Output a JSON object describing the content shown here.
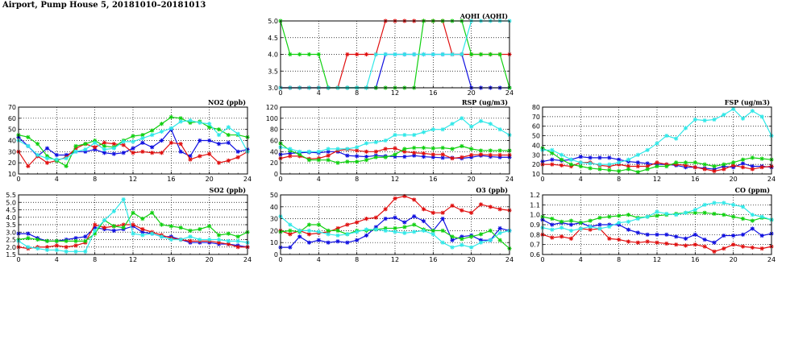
{
  "title": "Airport, Pump House 5, 20181010–20181013",
  "colors": {
    "blue": "#1010e0",
    "red": "#e01010",
    "green": "#10d010",
    "cyan": "#30e8e8"
  },
  "chart_data": [
    {
      "id": "aqhi",
      "type": "line",
      "title": "AQHI (AQHI)",
      "x": [
        0,
        1,
        2,
        3,
        4,
        5,
        6,
        7,
        8,
        9,
        10,
        11,
        12,
        13,
        14,
        15,
        16,
        17,
        18,
        19,
        20,
        21,
        22,
        23,
        24
      ],
      "xlim": [
        0,
        24
      ],
      "xticks": [
        "0",
        "4",
        "8",
        "12",
        "16",
        "20",
        "24"
      ],
      "ylim": [
        3,
        5
      ],
      "yticks": [
        "3.0",
        "3.5",
        "4.0",
        "4.5",
        "5.0"
      ],
      "grid": true,
      "series": [
        {
          "color": "blue",
          "values": [
            3,
            3,
            3,
            3,
            3,
            3,
            3,
            3,
            3,
            3,
            3,
            4,
            4,
            4,
            4,
            4,
            4,
            4,
            4,
            4,
            3,
            3,
            3,
            3,
            3
          ]
        },
        {
          "color": "red",
          "values": [
            3,
            3,
            3,
            3,
            3,
            3,
            3,
            4,
            4,
            4,
            4,
            5,
            5,
            5,
            5,
            5,
            5,
            5,
            4,
            4,
            4,
            4,
            4,
            4,
            4
          ]
        },
        {
          "color": "green",
          "values": [
            5,
            4,
            4,
            4,
            4,
            3,
            3,
            3,
            3,
            3,
            3,
            3,
            3,
            3,
            3,
            5,
            5,
            5,
            5,
            5,
            4,
            4,
            4,
            4,
            3
          ]
        },
        {
          "color": "cyan",
          "values": [
            3,
            3,
            3,
            3,
            3,
            3,
            3,
            3,
            3,
            3,
            4,
            4,
            4,
            4,
            4,
            4,
            4,
            4,
            4,
            4,
            5,
            5,
            5,
            5,
            5
          ]
        }
      ]
    },
    {
      "id": "no2",
      "type": "line",
      "title": "NO2 (ppb)",
      "x": [
        0,
        1,
        2,
        3,
        4,
        5,
        6,
        7,
        8,
        9,
        10,
        11,
        12,
        13,
        14,
        15,
        16,
        17,
        18,
        19,
        20,
        21,
        22,
        23,
        24
      ],
      "xlim": [
        0,
        24
      ],
      "xticks": [
        "0",
        "4",
        "8",
        "12",
        "16",
        "20",
        "24"
      ],
      "ylim": [
        10,
        70
      ],
      "yticks": [
        "10",
        "20",
        "30",
        "40",
        "50",
        "60",
        "70"
      ],
      "grid": true,
      "series": [
        {
          "color": "blue",
          "values": [
            43,
            35,
            26,
            33,
            27,
            27,
            30,
            30,
            32,
            29,
            28,
            29,
            33,
            38,
            34,
            40,
            50,
            30,
            26,
            40,
            40,
            37,
            38,
            30,
            32
          ]
        },
        {
          "color": "red",
          "values": [
            30,
            17,
            26,
            20,
            22,
            25,
            33,
            37,
            34,
            38,
            37,
            36,
            29,
            30,
            29,
            29,
            38,
            37,
            23,
            26,
            28,
            20,
            22,
            25,
            30
          ]
        },
        {
          "color": "green",
          "values": [
            45,
            43,
            37,
            26,
            22,
            17,
            35,
            37,
            40,
            35,
            34,
            40,
            44,
            45,
            49,
            55,
            61,
            60,
            56,
            57,
            52,
            50,
            45,
            45,
            43
          ]
        },
        {
          "color": "cyan",
          "values": [
            40,
            35,
            27,
            24,
            23,
            24,
            30,
            32,
            38,
            32,
            33,
            39,
            39,
            42,
            45,
            48,
            51,
            57,
            58,
            56,
            55,
            45,
            52,
            46,
            30
          ]
        }
      ]
    },
    {
      "id": "rsp",
      "type": "line",
      "title": "RSP (ug/m3)",
      "x": [
        0,
        1,
        2,
        3,
        4,
        5,
        6,
        7,
        8,
        9,
        10,
        11,
        12,
        13,
        14,
        15,
        16,
        17,
        18,
        19,
        20,
        21,
        22,
        23,
        24
      ],
      "xlim": [
        0,
        24
      ],
      "xticks": [
        "0",
        "4",
        "8",
        "12",
        "16",
        "20",
        "24"
      ],
      "ylim": [
        0,
        120
      ],
      "yticks": [
        "0",
        "20",
        "40",
        "60",
        "80",
        "100",
        "120"
      ],
      "grid": true,
      "series": [
        {
          "color": "blue",
          "values": [
            35,
            37,
            38,
            39,
            38,
            40,
            40,
            33,
            32,
            31,
            33,
            32,
            31,
            31,
            33,
            31,
            30,
            29,
            29,
            28,
            30,
            33,
            31,
            30,
            30
          ]
        },
        {
          "color": "red",
          "values": [
            28,
            32,
            32,
            27,
            28,
            33,
            42,
            44,
            42,
            40,
            40,
            45,
            46,
            40,
            38,
            37,
            35,
            35,
            28,
            30,
            34,
            35,
            34,
            34,
            34
          ]
        },
        {
          "color": "green",
          "values": [
            55,
            42,
            35,
            25,
            25,
            25,
            20,
            22,
            22,
            25,
            30,
            30,
            35,
            45,
            47,
            47,
            46,
            47,
            45,
            50,
            45,
            42,
            42,
            42,
            42
          ]
        },
        {
          "color": "cyan",
          "values": [
            48,
            45,
            40,
            40,
            40,
            45,
            45,
            45,
            48,
            55,
            57,
            60,
            70,
            70,
            70,
            75,
            80,
            80,
            90,
            100,
            85,
            95,
            90,
            80,
            70
          ]
        }
      ]
    },
    {
      "id": "fsp",
      "type": "line",
      "title": "FSP (ug/m3)",
      "x": [
        0,
        1,
        2,
        3,
        4,
        5,
        6,
        7,
        8,
        9,
        10,
        11,
        12,
        13,
        14,
        15,
        16,
        17,
        18,
        19,
        20,
        21,
        22,
        23,
        24
      ],
      "xlim": [
        0,
        24
      ],
      "xticks": [
        "0",
        "4",
        "8",
        "12",
        "16",
        "20",
        "24"
      ],
      "ylim": [
        10,
        80
      ],
      "yticks": [
        "10",
        "20",
        "30",
        "40",
        "50",
        "60",
        "70",
        "80"
      ],
      "grid": true,
      "series": [
        {
          "color": "blue",
          "values": [
            23,
            25,
            24,
            25,
            28,
            27,
            27,
            27,
            25,
            23,
            22,
            21,
            20,
            20,
            19,
            17,
            17,
            16,
            15,
            18,
            17,
            21,
            18,
            18,
            17
          ]
        },
        {
          "color": "red",
          "values": [
            20,
            20,
            19,
            18,
            22,
            22,
            19,
            18,
            20,
            18,
            18,
            18,
            22,
            20,
            20,
            19,
            17,
            15,
            13,
            15,
            19,
            17,
            15,
            17,
            18
          ]
        },
        {
          "color": "green",
          "values": [
            37,
            32,
            25,
            20,
            18,
            16,
            15,
            14,
            13,
            15,
            12,
            15,
            18,
            18,
            22,
            22,
            22,
            20,
            18,
            20,
            22,
            25,
            27,
            26,
            25
          ]
        },
        {
          "color": "cyan",
          "values": [
            35,
            35,
            30,
            25,
            22,
            21,
            20,
            20,
            22,
            25,
            30,
            35,
            42,
            50,
            47,
            58,
            67,
            66,
            67,
            72,
            78,
            68,
            76,
            70,
            50
          ]
        }
      ]
    },
    {
      "id": "so2",
      "type": "line",
      "title": "SO2 (ppb)",
      "x": [
        0,
        1,
        2,
        3,
        4,
        5,
        6,
        7,
        8,
        9,
        10,
        11,
        12,
        13,
        14,
        15,
        16,
        17,
        18,
        19,
        20,
        21,
        22,
        23,
        24
      ],
      "xlim": [
        0,
        24
      ],
      "xticks": [
        "0",
        "4",
        "8",
        "12",
        "16",
        "20",
        "24"
      ],
      "ylim": [
        1.5,
        5.5
      ],
      "yticks": [
        "1.5",
        "2.0",
        "2.5",
        "3.0",
        "3.5",
        "4.0",
        "4.5",
        "5.0",
        "5.5"
      ],
      "grid": true,
      "series": [
        {
          "color": "blue",
          "values": [
            2.9,
            2.9,
            2.6,
            2.4,
            2.4,
            2.5,
            2.6,
            2.7,
            3.3,
            3.2,
            3.1,
            3.2,
            3.4,
            3.0,
            2.9,
            2.7,
            2.7,
            2.5,
            2.3,
            2.3,
            2.3,
            2.2,
            2.2,
            2.1,
            2.0
          ]
        },
        {
          "color": "red",
          "values": [
            2.0,
            1.9,
            2.0,
            2.0,
            2.1,
            2.0,
            2.1,
            2.3,
            3.5,
            3.3,
            3.4,
            3.5,
            3.5,
            3.2,
            3.0,
            2.8,
            2.6,
            2.5,
            2.4,
            2.4,
            2.4,
            2.3,
            2.2,
            2.0,
            2.0
          ]
        },
        {
          "color": "green",
          "values": [
            2.5,
            2.6,
            2.5,
            2.4,
            2.4,
            2.4,
            2.4,
            2.4,
            2.9,
            3.8,
            3.4,
            3.3,
            4.3,
            3.9,
            4.3,
            3.5,
            3.4,
            3.3,
            3.1,
            3.2,
            3.4,
            2.8,
            2.9,
            2.7,
            3.0
          ]
        },
        {
          "color": "cyan",
          "values": [
            2.4,
            2.0,
            1.9,
            1.8,
            1.8,
            1.7,
            1.7,
            1.7,
            3.1,
            3.8,
            4.4,
            5.2,
            2.9,
            2.8,
            2.9,
            2.7,
            2.5,
            2.5,
            2.7,
            2.5,
            2.5,
            2.5,
            2.4,
            2.4,
            2.3
          ]
        }
      ]
    },
    {
      "id": "o3",
      "type": "line",
      "title": "O3 (ppb)",
      "x": [
        0,
        1,
        2,
        3,
        4,
        5,
        6,
        7,
        8,
        9,
        10,
        11,
        12,
        13,
        14,
        15,
        16,
        17,
        18,
        19,
        20,
        21,
        22,
        23,
        24
      ],
      "xlim": [
        0,
        24
      ],
      "xticks": [
        "0",
        "4",
        "8",
        "12",
        "16",
        "20",
        "24"
      ],
      "ylim": [
        0,
        50
      ],
      "yticks": [
        "0",
        "10",
        "20",
        "30",
        "40",
        "50"
      ],
      "grid": true,
      "series": [
        {
          "color": "blue",
          "values": [
            6,
            6,
            15,
            10,
            12,
            10,
            11,
            10,
            12,
            16,
            23,
            30,
            31,
            27,
            32,
            28,
            20,
            30,
            12,
            15,
            16,
            12,
            12,
            22,
            20
          ]
        },
        {
          "color": "red",
          "values": [
            20,
            17,
            20,
            17,
            18,
            19,
            22,
            25,
            27,
            30,
            31,
            38,
            47,
            49,
            46,
            38,
            35,
            35,
            41,
            37,
            35,
            42,
            40,
            38,
            37
          ]
        },
        {
          "color": "green",
          "values": [
            19,
            20,
            19,
            25,
            25,
            20,
            20,
            17,
            20,
            20,
            21,
            22,
            22,
            23,
            25,
            21,
            20,
            20,
            15,
            13,
            15,
            17,
            20,
            12,
            5
          ]
        },
        {
          "color": "cyan",
          "values": [
            32,
            25,
            20,
            20,
            19,
            17,
            16,
            17,
            19,
            21,
            21,
            20,
            19,
            18,
            19,
            20,
            17,
            10,
            6,
            8,
            6,
            10,
            12,
            18,
            20
          ]
        }
      ]
    },
    {
      "id": "co",
      "type": "line",
      "title": "CO (ppm)",
      "x": [
        0,
        1,
        2,
        3,
        4,
        5,
        6,
        7,
        8,
        9,
        10,
        11,
        12,
        13,
        14,
        15,
        16,
        17,
        18,
        19,
        20,
        21,
        22,
        23,
        24
      ],
      "xlim": [
        0,
        24
      ],
      "xticks": [
        "0",
        "4",
        "8",
        "12",
        "16",
        "20",
        "24"
      ],
      "ylim": [
        0.6,
        1.2
      ],
      "yticks": [
        "0.6",
        "0.7",
        "0.8",
        "0.9",
        "1.0",
        "1.1",
        "1.2"
      ],
      "grid": true,
      "series": [
        {
          "color": "blue",
          "values": [
            0.95,
            0.9,
            0.92,
            0.9,
            0.92,
            0.88,
            0.9,
            0.9,
            0.9,
            0.85,
            0.82,
            0.8,
            0.8,
            0.8,
            0.78,
            0.76,
            0.8,
            0.75,
            0.72,
            0.79,
            0.79,
            0.8,
            0.86,
            0.79,
            0.81
          ]
        },
        {
          "color": "red",
          "values": [
            0.8,
            0.77,
            0.78,
            0.76,
            0.86,
            0.85,
            0.86,
            0.76,
            0.75,
            0.73,
            0.72,
            0.73,
            0.72,
            0.71,
            0.7,
            0.69,
            0.7,
            0.68,
            0.63,
            0.66,
            0.7,
            0.68,
            0.67,
            0.66,
            0.68
          ]
        },
        {
          "color": "green",
          "values": [
            0.98,
            0.96,
            0.93,
            0.94,
            0.92,
            0.94,
            0.97,
            0.98,
            0.99,
            1.0,
            0.97,
            0.98,
            0.99,
            1.0,
            1.01,
            1.02,
            1.02,
            1.02,
            1.01,
            1.0,
            0.98,
            0.96,
            0.94,
            0.97,
            0.95
          ]
        },
        {
          "color": "cyan",
          "values": [
            0.87,
            0.85,
            0.87,
            0.84,
            0.86,
            0.88,
            0.86,
            0.88,
            0.92,
            0.93,
            0.96,
            0.98,
            1.03,
            1.01,
            1.0,
            1.02,
            1.05,
            1.1,
            1.12,
            1.12,
            1.1,
            1.08,
            1.0,
            0.98,
            0.95
          ]
        }
      ]
    }
  ]
}
